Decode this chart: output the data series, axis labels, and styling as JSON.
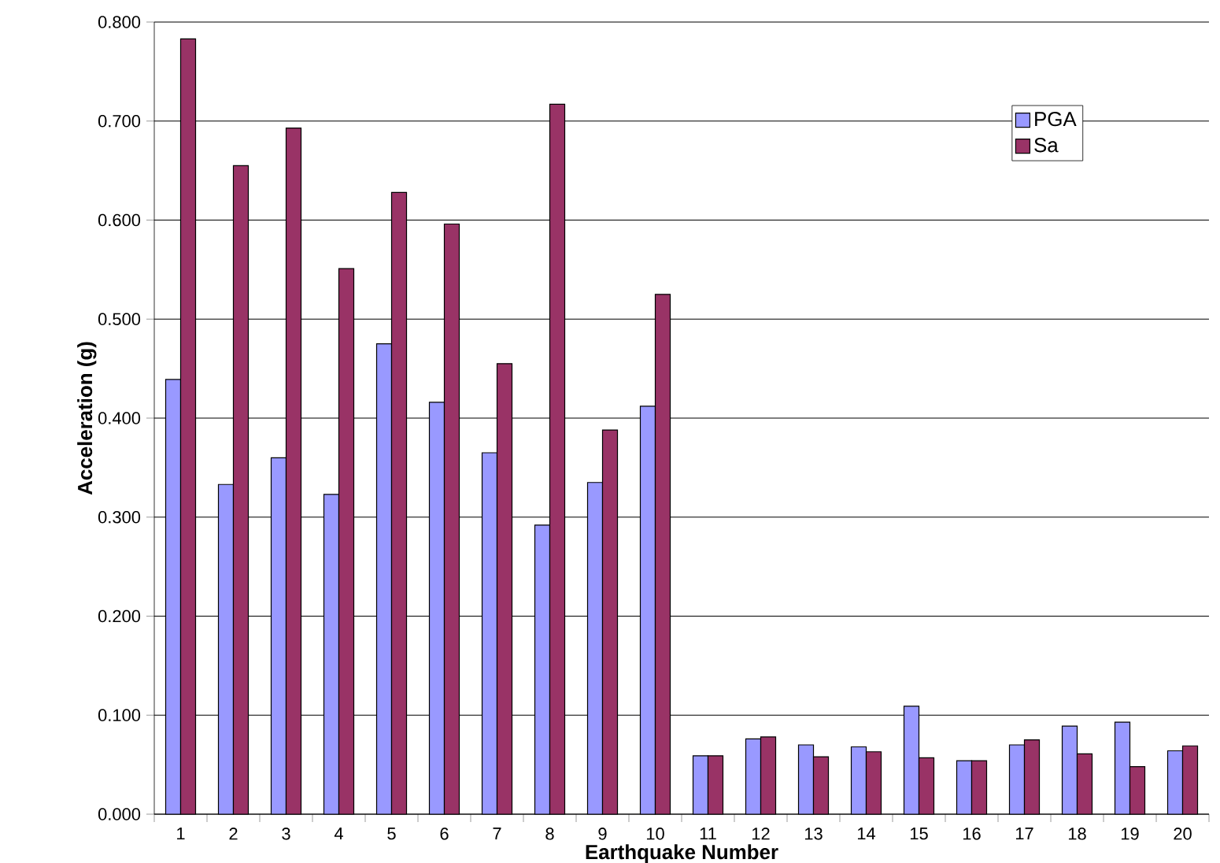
{
  "chart_data": {
    "type": "bar",
    "xlabel": "Earthquake Number",
    "ylabel": "Acceleration (g)",
    "categories": [
      "1",
      "2",
      "3",
      "4",
      "5",
      "6",
      "7",
      "8",
      "9",
      "10",
      "11",
      "12",
      "13",
      "14",
      "15",
      "16",
      "17",
      "18",
      "19",
      "20"
    ],
    "series": [
      {
        "name": "PGA",
        "color": "#9999ff",
        "values": [
          0.439,
          0.333,
          0.36,
          0.323,
          0.475,
          0.416,
          0.365,
          0.292,
          0.335,
          0.412,
          0.059,
          0.076,
          0.07,
          0.068,
          0.109,
          0.054,
          0.07,
          0.089,
          0.093,
          0.064
        ]
      },
      {
        "name": "Sa",
        "color": "#993366",
        "values": [
          0.783,
          0.655,
          0.693,
          0.551,
          0.628,
          0.596,
          0.455,
          0.717,
          0.388,
          0.525,
          0.059,
          0.078,
          0.058,
          0.063,
          0.057,
          0.054,
          0.075,
          0.061,
          0.048,
          0.069
        ]
      }
    ],
    "ylim": [
      0,
      0.8
    ],
    "yticks": [
      {
        "value": 0,
        "label": "0.000"
      },
      {
        "value": 0.1,
        "label": "0.100"
      },
      {
        "value": 0.2,
        "label": "0.200"
      },
      {
        "value": 0.3,
        "label": "0.300"
      },
      {
        "value": 0.4,
        "label": "0.400"
      },
      {
        "value": 0.5,
        "label": "0.500"
      },
      {
        "value": 0.6,
        "label": "0.600"
      },
      {
        "value": 0.7,
        "label": "0.700"
      },
      {
        "value": 0.8,
        "label": "0.800"
      }
    ],
    "grid": "y",
    "legend": "top right"
  }
}
